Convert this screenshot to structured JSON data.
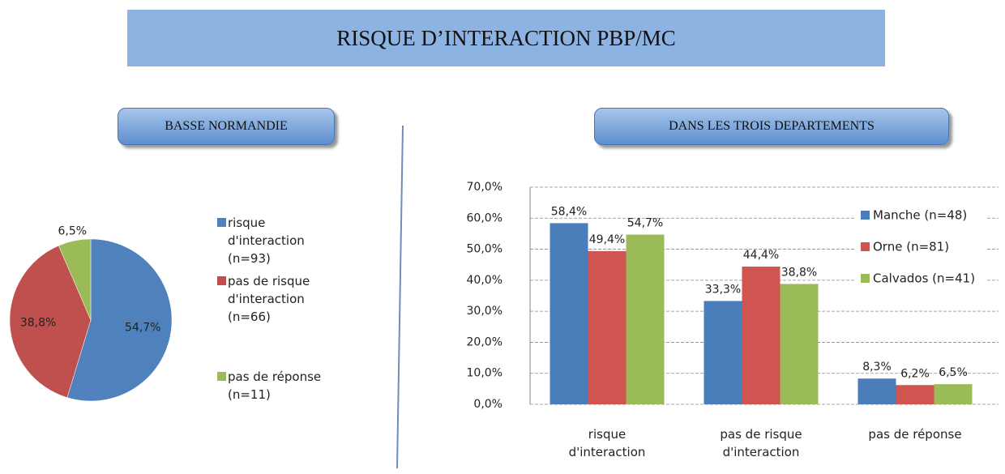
{
  "header": {
    "title": "RISQUE D’INTERACTION PBP/MC"
  },
  "panels": [
    {
      "title": "BASSE NORMANDIE"
    },
    {
      "title": "DANS LES TROIS DEPARTEMENTS"
    }
  ],
  "chart_data": [
    {
      "type": "pie",
      "categories": [
        "risque d'interaction (n=93)",
        "pas de risque d'interaction (n=66)",
        "pas de réponse (n=11)"
      ],
      "values": [
        54.7,
        38.8,
        6.5
      ],
      "value_labels": [
        "54,7%",
        "38,8%",
        "6,5%"
      ],
      "colors": [
        "#4f81bd",
        "#c0504d",
        "#9bbb59"
      ],
      "legend": "right"
    },
    {
      "type": "bar",
      "categories": [
        "risque d'interaction",
        "pas de risque d'interaction",
        "pas de réponse"
      ],
      "series": [
        {
          "name": "Manche (n=48)",
          "color": "#4a7ebb",
          "values": [
            58.4,
            33.3,
            8.3
          ],
          "value_labels": [
            "58,4%",
            "33,3%",
            "8,3%"
          ]
        },
        {
          "name": "Orne (n=81)",
          "color": "#d05450",
          "values": [
            49.4,
            44.4,
            6.2
          ],
          "value_labels": [
            "49,4%",
            "44,4%",
            "6,2%"
          ]
        },
        {
          "name": "Calvados (n=41)",
          "color": "#9bbb59",
          "values": [
            54.7,
            38.8,
            6.5
          ],
          "value_labels": [
            "54,7%",
            "38,8%",
            "6,5%"
          ]
        }
      ],
      "ylim": [
        0,
        70
      ],
      "yticks": [
        {
          "value": 0,
          "label": "0,0%"
        },
        {
          "value": 10,
          "label": "10,0%"
        },
        {
          "value": 20,
          "label": "20,0%"
        },
        {
          "value": 30,
          "label": "30,0%"
        },
        {
          "value": 40,
          "label": "40,0%"
        },
        {
          "value": 50,
          "label": "50,0%"
        },
        {
          "value": 60,
          "label": "60,0%"
        },
        {
          "value": 70,
          "label": "70,0%"
        }
      ],
      "grid": true,
      "legend": "right"
    }
  ]
}
